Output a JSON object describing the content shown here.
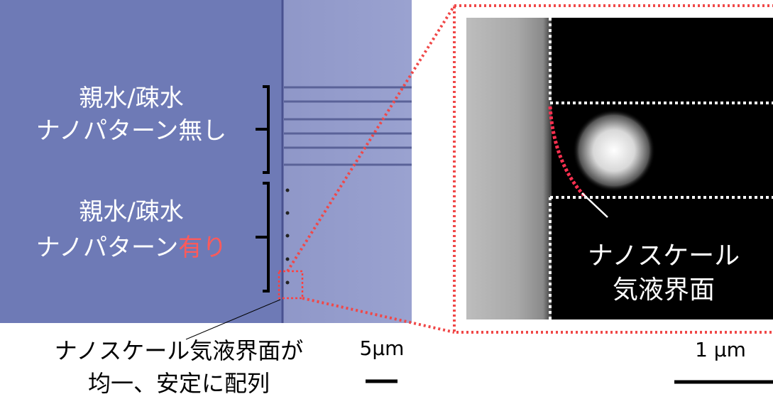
{
  "left_panel": {
    "group_1": {
      "line_1": "親水/疎水",
      "line_2": "ナノパターン無し"
    },
    "group_2": {
      "line_1": "親水/疎水",
      "line_2": "ナノパターン",
      "line_2_highlight": "有り"
    }
  },
  "right_panel": {
    "label_line_1": "ナノスケール",
    "label_line_2": "気液界面"
  },
  "caption": {
    "line_1": "ナノスケール気液界面が",
    "line_2": "均一、安定に配列"
  },
  "scale_bars": {
    "left": "5µm",
    "right": "1 µm"
  }
}
